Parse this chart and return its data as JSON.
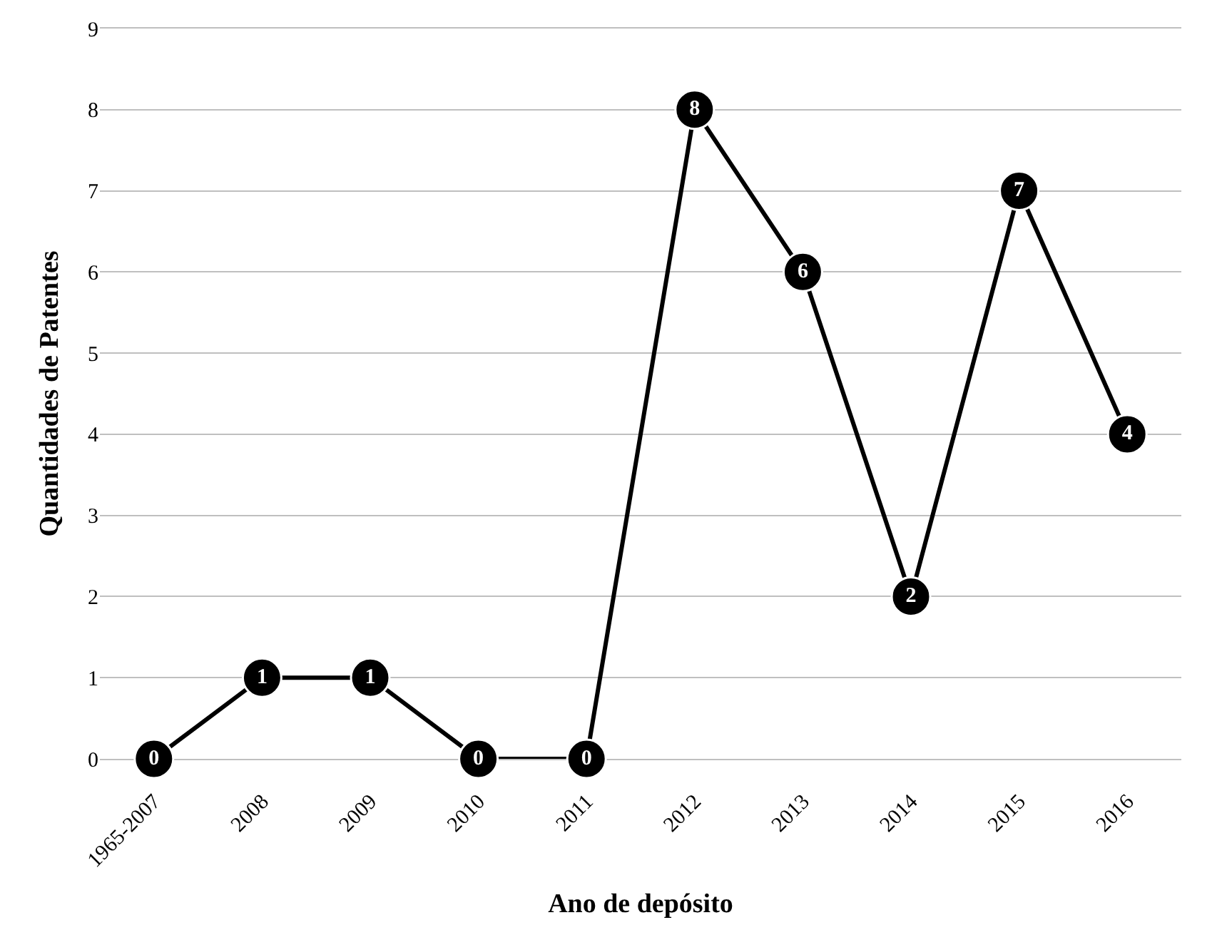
{
  "chart_data": {
    "type": "line",
    "xlabel": "Ano de depósito",
    "ylabel": "Quantidades de Patentes",
    "categories": [
      "1965-2007",
      "2008",
      "2009",
      "2010",
      "2011",
      "2012",
      "2013",
      "2014",
      "2015",
      "2016"
    ],
    "series": [
      {
        "color": "#000000",
        "values": [
          0,
          1,
          1,
          0,
          0,
          8,
          6,
          2,
          7,
          4
        ]
      }
    ],
    "ylim": [
      0,
      9
    ],
    "yticks": [
      0,
      1,
      2,
      3,
      4,
      5,
      6,
      7,
      8,
      9
    ],
    "grid": "y",
    "marker": "circle",
    "line_style": "solid",
    "data_labels": true
  }
}
